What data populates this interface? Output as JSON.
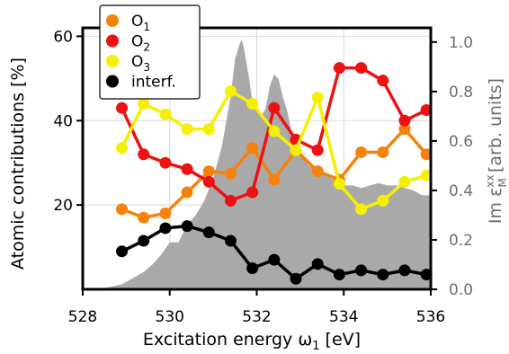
{
  "chart_data": {
    "type": "line",
    "xlabel": "Excitation energy ω",
    "xlabel_sub": "1",
    "xlabel_unit": " [eV]",
    "ylabel": "Atomic contributions [%]",
    "y2label": "Im ε",
    "y2label_sup": "xx",
    "y2label_sub": "M",
    "y2label_unit": " [arb. units]",
    "xlim": [
      528,
      536
    ],
    "ylim": [
      0,
      62
    ],
    "y2lim": [
      0,
      1.0575
    ],
    "xticks": [
      "528",
      "530",
      "532",
      "534",
      "536"
    ],
    "xtick_values": [
      528,
      530,
      532,
      534,
      536
    ],
    "yticks": [
      "20",
      "40",
      "60"
    ],
    "ytick_values": [
      20,
      40,
      60
    ],
    "y2ticks": [
      "0.0",
      "0.2",
      "0.4",
      "0.6",
      "0.8",
      "1.0"
    ],
    "y2tick_values": [
      0.0,
      0.2,
      0.4,
      0.6,
      0.8,
      1.0
    ],
    "grid": true,
    "legend_position": "top-left",
    "x": [
      528.9,
      529.4,
      529.9,
      530.4,
      530.9,
      531.4,
      531.9,
      532.4,
      532.9,
      533.4,
      533.9,
      534.4,
      534.9,
      535.4,
      535.9
    ],
    "series": [
      {
        "name": "O",
        "sub": "1",
        "color": "#f5820b",
        "values": [
          19,
          17,
          18,
          23,
          28,
          27.5,
          33.5,
          26,
          33,
          28,
          26,
          32.5,
          32.5,
          38,
          32
        ]
      },
      {
        "name": "O",
        "sub": "2",
        "color": "#ee1111",
        "values": [
          43,
          32,
          30,
          28.5,
          25.5,
          21,
          23,
          43,
          35.5,
          33,
          52.5,
          52.5,
          49.5,
          40,
          42.5
        ]
      },
      {
        "name": "O",
        "sub": "3",
        "color": "#f5f003",
        "values": [
          33.5,
          44,
          41.5,
          38,
          38,
          47,
          44,
          37.5,
          33,
          45.5,
          25,
          19,
          21,
          25.5,
          27
        ]
      },
      {
        "name": "interf.",
        "sub": "",
        "color": "#000000",
        "values": [
          9,
          11.5,
          14.5,
          15,
          13.5,
          11.5,
          5,
          7,
          2.5,
          6,
          3.5,
          4.5,
          3.5,
          4.5,
          3.5
        ]
      }
    ],
    "background_spectrum": {
      "color": "#a9a9a9",
      "axis": "y2",
      "x": [
        528,
        528.5,
        528.9,
        529.2,
        529.4,
        529.6,
        529.8,
        530.0,
        530.2,
        530.4,
        530.6,
        530.8,
        531.0,
        531.2,
        531.4,
        531.5,
        531.6,
        531.65,
        531.7,
        531.8,
        531.9,
        532.0,
        532.1,
        532.2,
        532.3,
        532.4,
        532.5,
        532.6,
        532.7,
        532.8,
        532.9,
        533.0,
        533.1,
        533.2,
        533.4,
        533.6,
        533.8,
        534.0,
        534.2,
        534.4,
        534.6,
        534.8,
        535.0,
        535.2,
        535.4,
        535.6,
        535.8,
        536
      ],
      "values": [
        0,
        0.005,
        0.02,
        0.05,
        0.07,
        0.1,
        0.14,
        0.19,
        0.19,
        0.26,
        0.3,
        0.36,
        0.45,
        0.58,
        0.78,
        0.93,
        0.99,
        1.01,
        0.98,
        0.88,
        0.76,
        0.72,
        0.7,
        0.73,
        0.82,
        0.87,
        0.85,
        0.78,
        0.72,
        0.64,
        0.6,
        0.56,
        0.53,
        0.5,
        0.5,
        0.46,
        0.44,
        0.42,
        0.42,
        0.41,
        0.42,
        0.43,
        0.42,
        0.42,
        0.41,
        0.4,
        0.38,
        0.38
      ]
    }
  }
}
